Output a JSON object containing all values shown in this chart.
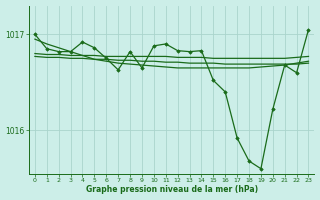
{
  "bg_color": "#cceee8",
  "grid_color": "#aad4cc",
  "line_color": "#1a6b1a",
  "marker_color": "#1a6b1a",
  "title": "Graphe pression niveau de la mer (hPa)",
  "xlim": [
    -0.5,
    23.5
  ],
  "ylim": [
    1015.55,
    1017.3
  ],
  "yticks": [
    1016,
    1017
  ],
  "ytick_labels": [
    "1016",
    "1017"
  ],
  "xticks": [
    0,
    1,
    2,
    3,
    4,
    5,
    6,
    7,
    8,
    9,
    10,
    11,
    12,
    13,
    14,
    15,
    16,
    17,
    18,
    19,
    20,
    21,
    22,
    23
  ],
  "series": [
    {
      "x": [
        0,
        1,
        2,
        3,
        4,
        5,
        6,
        7,
        8,
        9,
        10,
        11,
        12,
        13,
        14,
        15,
        16,
        17,
        18,
        19,
        20,
        21,
        22,
        23
      ],
      "y": [
        1016.95,
        1016.9,
        1016.86,
        1016.82,
        1016.78,
        1016.74,
        1016.72,
        1016.7,
        1016.69,
        1016.68,
        1016.67,
        1016.66,
        1016.65,
        1016.65,
        1016.65,
        1016.65,
        1016.65,
        1016.65,
        1016.65,
        1016.66,
        1016.67,
        1016.68,
        1016.7,
        1016.72
      ],
      "with_markers": false,
      "lw": 0.9
    },
    {
      "x": [
        0,
        1,
        2,
        3,
        4,
        5,
        6,
        7,
        8,
        9,
        10,
        11,
        12,
        13,
        14,
        15,
        16,
        17,
        18,
        19,
        20,
        21,
        22,
        23
      ],
      "y": [
        1016.8,
        1016.79,
        1016.79,
        1016.78,
        1016.78,
        1016.78,
        1016.77,
        1016.77,
        1016.77,
        1016.77,
        1016.77,
        1016.77,
        1016.76,
        1016.76,
        1016.76,
        1016.75,
        1016.75,
        1016.75,
        1016.75,
        1016.75,
        1016.75,
        1016.75,
        1016.76,
        1016.77
      ],
      "with_markers": false,
      "lw": 0.9
    },
    {
      "x": [
        0,
        1,
        2,
        3,
        4,
        5,
        6,
        7,
        8,
        9,
        10,
        11,
        12,
        13,
        14,
        15,
        16,
        17,
        18,
        19,
        20,
        21,
        22,
        23
      ],
      "y": [
        1016.77,
        1016.76,
        1016.76,
        1016.75,
        1016.75,
        1016.74,
        1016.74,
        1016.73,
        1016.73,
        1016.72,
        1016.72,
        1016.71,
        1016.71,
        1016.7,
        1016.7,
        1016.7,
        1016.69,
        1016.69,
        1016.69,
        1016.69,
        1016.69,
        1016.69,
        1016.69,
        1016.7
      ],
      "with_markers": false,
      "lw": 0.9
    },
    {
      "x": [
        0,
        1,
        2,
        3,
        4,
        5,
        6,
        7,
        8,
        9,
        10,
        11,
        12,
        13,
        14,
        15,
        16,
        17,
        18,
        19,
        20,
        21,
        22,
        23
      ],
      "y": [
        1017.0,
        1016.85,
        1016.82,
        1016.82,
        1016.92,
        1016.86,
        1016.75,
        1016.63,
        1016.82,
        1016.65,
        1016.88,
        1016.9,
        1016.83,
        1016.82,
        1016.83,
        1016.52,
        1016.4,
        1015.92,
        1015.68,
        1015.6,
        1016.22,
        1016.68,
        1016.6,
        1017.05
      ],
      "with_markers": true,
      "lw": 0.9
    }
  ]
}
